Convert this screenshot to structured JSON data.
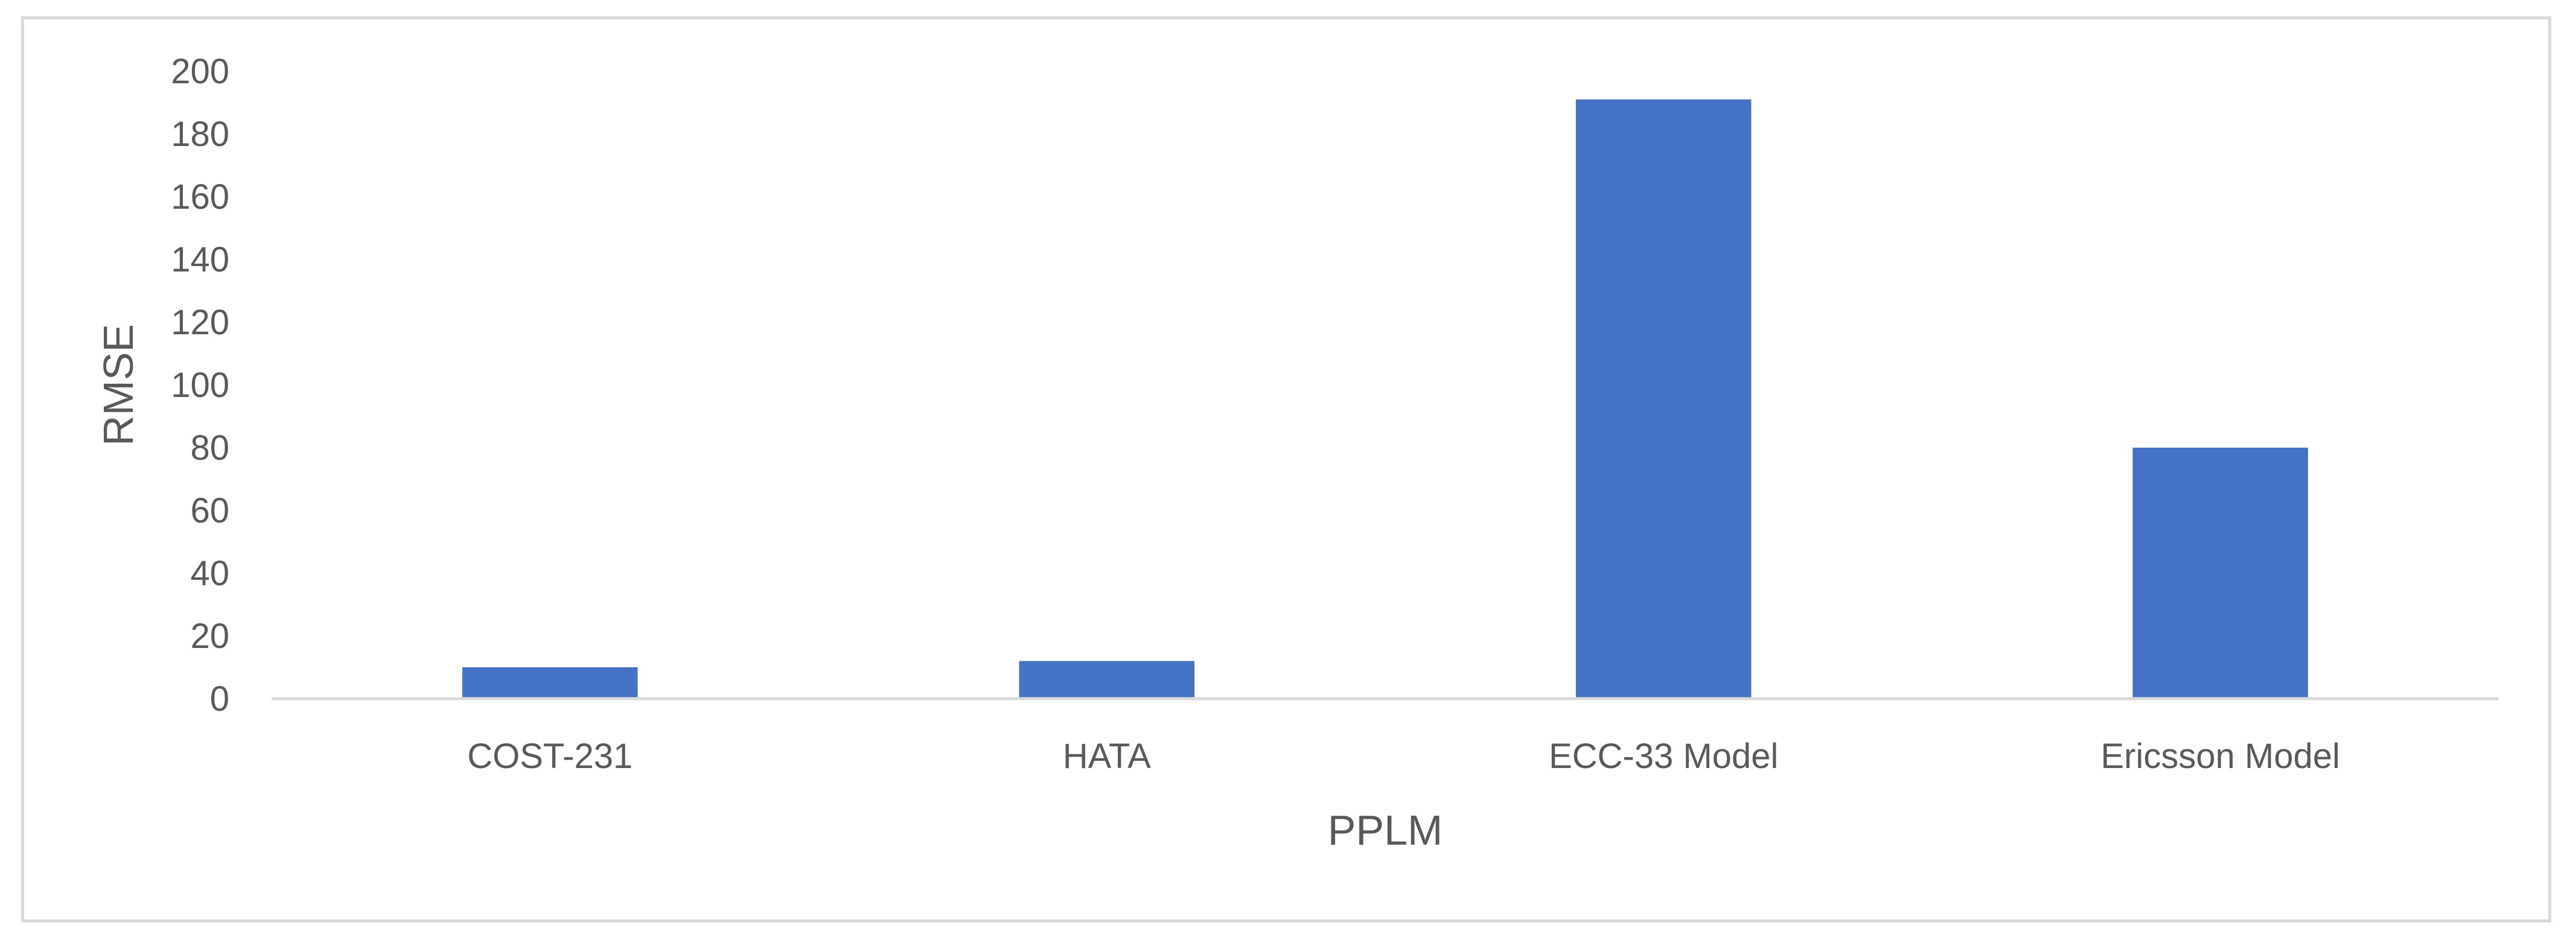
{
  "chart_data": {
    "type": "bar",
    "categories": [
      "COST-231",
      "HATA",
      "ECC-33 Model",
      "Ericsson Model"
    ],
    "values": [
      10,
      12,
      191,
      80
    ],
    "title": "",
    "xlabel": "PPLM",
    "ylabel": "RMSE",
    "ylim": [
      0,
      200
    ],
    "yticks": [
      "0",
      "20",
      "40",
      "60",
      "80",
      "100",
      "120",
      "140",
      "160",
      "180",
      "200"
    ],
    "grid": false,
    "legend": "none",
    "bar_color": "#4472C4",
    "axis_line_color": "#d9d9d9",
    "text_color": "#595959"
  }
}
